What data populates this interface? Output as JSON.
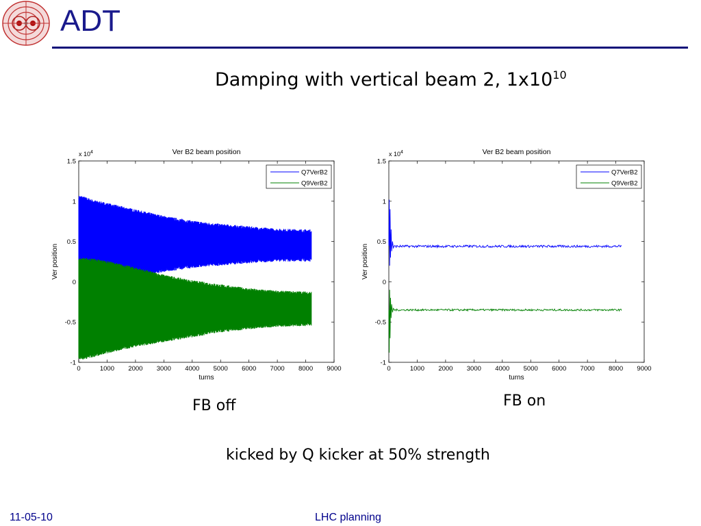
{
  "slide": {
    "title": "ADT",
    "heading_main": "Damping with vertical beam 2, 1x10",
    "heading_sup": "10",
    "caption_left": "FB off",
    "caption_right": "FB on",
    "note": "kicked by Q kicker at 50% strength",
    "footer_date": "11-05-10",
    "footer_center": "LHC planning"
  },
  "colors": {
    "title": "#1a1a8c",
    "rule": "#0b0b78",
    "series_q7": "#0000ff",
    "series_q9": "#008000",
    "footer": "#00008b"
  },
  "chart_data": [
    {
      "type": "line",
      "title": "Ver B2 beam position",
      "xlabel": "turns",
      "ylabel": "Ver position",
      "y_exponent": "x 10",
      "y_exponent_power": "4",
      "xlim": [
        0,
        9000
      ],
      "ylim": [
        -1,
        1.5
      ],
      "x_ticks": [
        0,
        1000,
        2000,
        3000,
        4000,
        5000,
        6000,
        7000,
        8000,
        9000
      ],
      "y_ticks": [
        -1,
        -0.5,
        0,
        0.5,
        1,
        1.5
      ],
      "x_tick_labels": [
        "0",
        "1000",
        "2000",
        "3000",
        "4000",
        "5000",
        "6000",
        "7000",
        "8000",
        "9000"
      ],
      "y_tick_labels": [
        "-1",
        "-0.5",
        "0",
        "0.5",
        "1",
        "1.5"
      ],
      "grid": false,
      "legend": "top-right",
      "legend_entries": [
        "Q7VerB2",
        "Q9VerB2"
      ],
      "series": [
        {
          "name": "Q7VerB2",
          "color": "#0000ff",
          "envelope_x": [
            0,
            100,
            500,
            1000,
            2000,
            3000,
            4000,
            5000,
            6000,
            7000,
            8200
          ],
          "envelope_upper": [
            1.05,
            1.05,
            1.0,
            0.96,
            0.88,
            0.8,
            0.74,
            0.7,
            0.67,
            0.64,
            0.63
          ],
          "envelope_lower": [
            0.0,
            -0.05,
            -0.0,
            0.04,
            0.08,
            0.14,
            0.19,
            0.22,
            0.25,
            0.27,
            0.27
          ]
        },
        {
          "name": "Q9VerB2",
          "color": "#008000",
          "envelope_x": [
            0,
            100,
            500,
            1000,
            2000,
            3000,
            4000,
            5000,
            6000,
            7000,
            8200
          ],
          "envelope_upper": [
            0.27,
            0.28,
            0.27,
            0.24,
            0.16,
            0.07,
            0.0,
            -0.05,
            -0.1,
            -0.13,
            -0.14
          ],
          "envelope_lower": [
            -0.94,
            -0.95,
            -0.92,
            -0.87,
            -0.79,
            -0.73,
            -0.67,
            -0.61,
            -0.57,
            -0.54,
            -0.53
          ]
        }
      ]
    },
    {
      "type": "line",
      "title": "Ver B2 beam position",
      "xlabel": "turns",
      "ylabel": "Ver position",
      "y_exponent": "x 10",
      "y_exponent_power": "4",
      "xlim": [
        0,
        9000
      ],
      "ylim": [
        -1,
        1.5
      ],
      "x_ticks": [
        0,
        1000,
        2000,
        3000,
        4000,
        5000,
        6000,
        7000,
        8000,
        9000
      ],
      "y_ticks": [
        -1,
        -0.5,
        0,
        0.5,
        1,
        1.5
      ],
      "x_tick_labels": [
        "0",
        "1000",
        "2000",
        "3000",
        "4000",
        "5000",
        "6000",
        "7000",
        "8000",
        "9000"
      ],
      "y_tick_labels": [
        "-1",
        "-0.5",
        "0",
        "0.5",
        "1",
        "1.5"
      ],
      "grid": false,
      "legend": "top-right",
      "legend_entries": [
        "Q7VerB2",
        "Q9VerB2"
      ],
      "series": [
        {
          "name": "Q7VerB2",
          "color": "#0000ff",
          "transient_x": [
            0,
            15,
            30,
            45,
            60,
            80,
            100,
            130,
            160,
            200
          ],
          "transient_y": [
            0.45,
            1.02,
            0.2,
            0.9,
            0.3,
            0.65,
            0.38,
            0.5,
            0.42,
            0.45
          ],
          "steady_level": 0.44,
          "steady_noise": 0.015,
          "steady_x": [
            200,
            8200
          ]
        },
        {
          "name": "Q9VerB2",
          "color": "#008000",
          "transient_x": [
            0,
            15,
            30,
            45,
            60,
            80,
            100,
            130,
            160,
            200
          ],
          "transient_y": [
            -0.35,
            -0.88,
            -0.1,
            -0.7,
            -0.2,
            -0.45,
            -0.28,
            -0.38,
            -0.33,
            -0.35
          ],
          "steady_level": -0.35,
          "steady_noise": 0.012,
          "steady_x": [
            200,
            8200
          ]
        }
      ]
    }
  ]
}
